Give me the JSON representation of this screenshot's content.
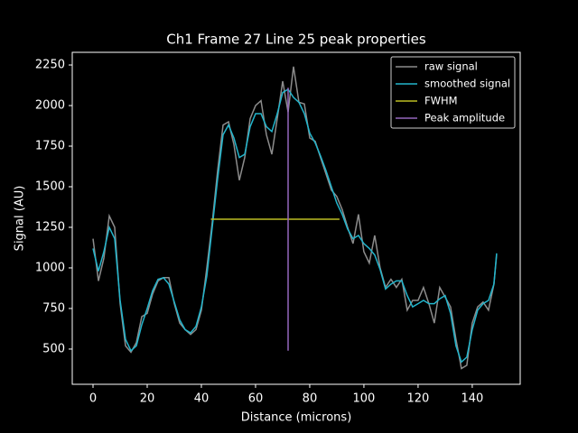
{
  "chart_data": {
    "type": "line",
    "title": "Ch1 Frame 27 Line 25 peak properties",
    "xlabel": "Distance (microns)",
    "ylabel": "Signal (AU)",
    "xlim": [
      -7.67,
      157.7
    ],
    "ylim": [
      283,
      2328
    ],
    "xticks": [
      0,
      20,
      40,
      60,
      80,
      100,
      120,
      140
    ],
    "yticks": [
      500,
      750,
      1000,
      1250,
      1500,
      1750,
      2000,
      2250
    ],
    "legend": "upper right",
    "series": [
      {
        "name": "raw signal",
        "color": "#8c8c8c",
        "x": [
          0,
          2,
          4,
          6,
          8,
          10,
          12,
          14,
          16,
          18,
          20,
          22,
          24,
          26,
          28,
          30,
          32,
          34,
          36,
          38,
          40,
          42,
          44,
          46,
          48,
          50,
          52,
          54,
          56,
          58,
          60,
          62,
          64,
          66,
          68,
          70,
          72,
          74,
          76,
          78,
          80,
          82,
          84,
          86,
          88,
          90,
          92,
          94,
          96,
          98,
          100,
          102,
          104,
          106,
          108,
          110,
          112,
          114,
          116,
          118,
          120,
          122,
          124,
          126,
          128,
          130,
          132,
          134,
          136,
          138,
          140,
          142,
          144,
          146,
          148,
          149
        ],
        "values": [
          1180,
          920,
          1060,
          1320,
          1250,
          780,
          520,
          480,
          540,
          700,
          720,
          840,
          920,
          940,
          940,
          780,
          660,
          620,
          590,
          620,
          740,
          1000,
          1280,
          1600,
          1880,
          1900,
          1760,
          1540,
          1680,
          1920,
          2000,
          2030,
          1820,
          1700,
          1920,
          2150,
          1960,
          2240,
          2020,
          2010,
          1800,
          1780,
          1680,
          1580,
          1480,
          1440,
          1360,
          1250,
          1150,
          1330,
          1100,
          1030,
          1200,
          1000,
          880,
          930,
          880,
          930,
          740,
          800,
          800,
          880,
          780,
          660,
          880,
          820,
          760,
          560,
          380,
          400,
          660,
          760,
          790,
          740,
          900,
          1080
        ]
      },
      {
        "name": "smoothed signal",
        "color": "#22b5cc",
        "x": [
          0,
          2,
          4,
          6,
          8,
          10,
          12,
          14,
          16,
          18,
          20,
          22,
          24,
          26,
          28,
          30,
          32,
          34,
          36,
          38,
          40,
          42,
          44,
          46,
          48,
          50,
          52,
          54,
          56,
          58,
          60,
          62,
          64,
          66,
          68,
          70,
          72,
          74,
          76,
          78,
          80,
          82,
          84,
          86,
          88,
          90,
          92,
          94,
          96,
          98,
          100,
          102,
          104,
          106,
          108,
          110,
          112,
          114,
          116,
          118,
          120,
          122,
          124,
          126,
          128,
          130,
          132,
          134,
          136,
          138,
          140,
          142,
          144,
          146,
          148,
          149
        ],
        "values": [
          1120,
          980,
          1100,
          1250,
          1180,
          800,
          560,
          490,
          520,
          650,
          750,
          860,
          930,
          940,
          900,
          790,
          680,
          620,
          600,
          640,
          760,
          950,
          1250,
          1550,
          1820,
          1880,
          1800,
          1680,
          1700,
          1870,
          1950,
          1950,
          1870,
          1840,
          1950,
          2080,
          2100,
          2050,
          2020,
          1950,
          1830,
          1770,
          1690,
          1600,
          1500,
          1400,
          1330,
          1240,
          1180,
          1200,
          1150,
          1120,
          1080,
          990,
          870,
          900,
          920,
          920,
          830,
          760,
          780,
          800,
          780,
          780,
          810,
          830,
          720,
          520,
          420,
          450,
          620,
          740,
          780,
          800,
          900,
          1090
        ]
      },
      {
        "name": "FWHM",
        "color": "#bcbd22",
        "x": [
          43.5,
          91
        ],
        "values": [
          1300,
          1300
        ]
      },
      {
        "name": "Peak amplitude",
        "color": "#9467bd",
        "x": [
          72,
          72
        ],
        "values": [
          490,
          2110
        ]
      }
    ]
  }
}
